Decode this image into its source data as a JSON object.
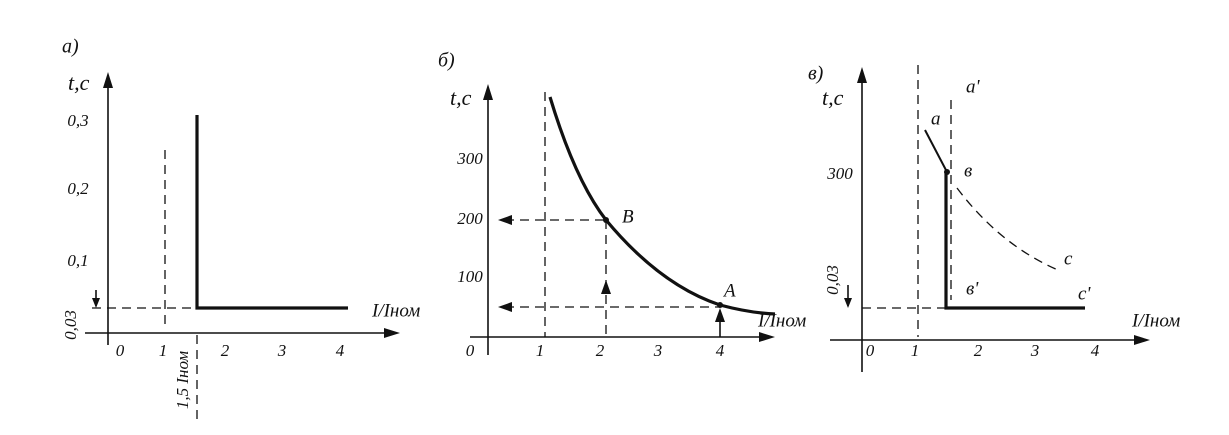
{
  "panels": [
    {
      "label": "а)",
      "y_axis": "t,c",
      "x_axis": "I/Iном",
      "y_ticks": [
        "0,3",
        "0,2",
        "0,1",
        "0,03"
      ],
      "x_ticks": [
        "0",
        "1",
        "2",
        "3",
        "4"
      ],
      "annotations": [
        "1,5 Iном"
      ]
    },
    {
      "label": "б)",
      "y_axis": "t,c",
      "x_axis": "I/Iном",
      "y_ticks": [
        "300",
        "200",
        "100"
      ],
      "x_ticks": [
        "0",
        "1",
        "2",
        "3",
        "4"
      ],
      "points": [
        "B",
        "A"
      ]
    },
    {
      "label": "в)",
      "y_axis": "t,c",
      "x_axis": "I/Iном",
      "y_ticks": [
        "300",
        "0,03"
      ],
      "x_ticks": [
        "0",
        "1",
        "2",
        "3",
        "4"
      ],
      "points": [
        "a",
        "a'",
        "в",
        "в'",
        "c",
        "c'"
      ]
    }
  ]
}
